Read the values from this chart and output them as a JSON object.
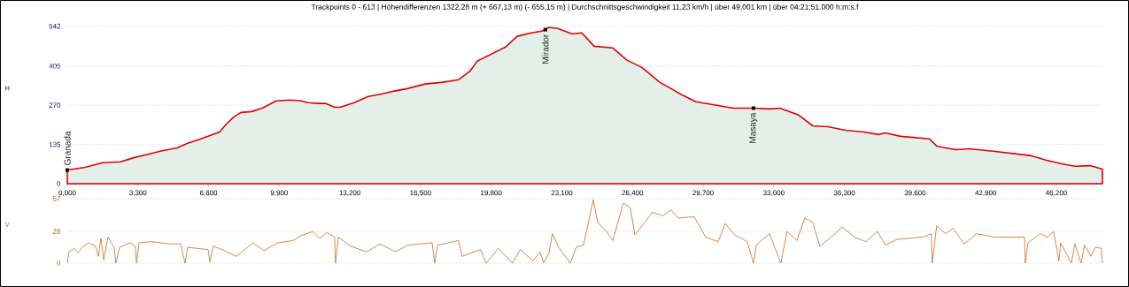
{
  "chart_data": [
    {
      "type": "area",
      "title": "Trackpoints 0 - 613  |  Höhendifferenzen  1322,28 m   (+ 667,13 m)  (- 655,15 m)  |  Durchschnittsgeschwindigkeit  11,23 km/h  |  über  49,001 km  |  über  04:21:51.000 h:m:s.f",
      "ylabel": "H",
      "color": "#e00000",
      "x": [
        0,
        0.83,
        1.65,
        2.48,
        3.14,
        3.8,
        4.47,
        5.13,
        5.62,
        6.12,
        6.78,
        7.11,
        7.44,
        7.78,
        8.11,
        8.6,
        9.1,
        9.76,
        10.42,
        10.92,
        11.25,
        11.75,
        12.08,
        12.49,
        12.74,
        13.4,
        14.06,
        14.72,
        15.22,
        15.88,
        16.71,
        17.54,
        18.28,
        18.82,
        19.15,
        19.81,
        20.47,
        21.01,
        21.67,
        22.17,
        22.5,
        22.91,
        23.57,
        24.03,
        24.61,
        25.48,
        26.14,
        26.84,
        27.67,
        28.7,
        29.36,
        30.4,
        31.1,
        32.09,
        32.8,
        33.29,
        34.16,
        34.82,
        35.53,
        36.35,
        37.22,
        37.88,
        38.21,
        38.92,
        40.28,
        40.61,
        41.48,
        42.14,
        43.34,
        44.71,
        45.04,
        45.7,
        46.4,
        47.06,
        47.77,
        48.35
      ],
      "values": [
        47,
        56,
        72,
        75,
        90,
        102,
        114,
        123,
        139,
        151,
        169,
        178,
        206,
        230,
        245,
        248,
        260,
        285,
        288,
        285,
        279,
        276,
        276,
        263,
        263,
        279,
        300,
        309,
        318,
        327,
        343,
        349,
        358,
        388,
        422,
        446,
        470,
        507,
        519,
        525,
        538,
        534,
        516,
        519,
        473,
        467,
        425,
        400,
        349,
        306,
        282,
        269,
        260,
        260,
        257,
        260,
        236,
        199,
        196,
        184,
        178,
        169,
        175,
        163,
        154,
        129,
        117,
        120,
        111,
        99,
        96,
        81,
        69,
        60,
        62,
        50
      ],
      "xlim": [
        0,
        48.35
      ],
      "ylim": [
        0,
        550
      ],
      "yticks": [
        0,
        135,
        270,
        405,
        542
      ],
      "xticks": [
        {
          "value": 0,
          "label": "0,000"
        },
        {
          "value": 3.3,
          "label": "3,300"
        },
        {
          "value": 6.6,
          "label": "6,600"
        },
        {
          "value": 9.9,
          "label": "9,900"
        },
        {
          "value": 13.2,
          "label": "13,200"
        },
        {
          "value": 16.5,
          "label": "16,500"
        },
        {
          "value": 19.8,
          "label": "19,800"
        },
        {
          "value": 23.1,
          "label": "23,100"
        },
        {
          "value": 26.4,
          "label": "26,400"
        },
        {
          "value": 29.7,
          "label": "29,700"
        },
        {
          "value": 33,
          "label": "33,000"
        },
        {
          "value": 36.3,
          "label": "36,300"
        },
        {
          "value": 39.6,
          "label": "39,600"
        },
        {
          "value": 42.9,
          "label": "42,900"
        },
        {
          "value": 46.2,
          "label": "46,200"
        }
      ],
      "grid": "y",
      "annotations": [
        {
          "text": "Granada",
          "x": 0,
          "y": 47
        },
        {
          "text": "Mirador",
          "x": 22.33,
          "y": 530
        },
        {
          "text": "Masaya",
          "x": 32.05,
          "y": 260
        }
      ]
    },
    {
      "type": "line",
      "ylabel": "V",
      "color": "#cc6a1e",
      "tick_labels": "y",
      "grid": "y",
      "x": [
        0,
        0.08,
        0.33,
        0.5,
        0.74,
        0.99,
        1.32,
        1.45,
        1.57,
        1.7,
        1.9,
        2.19,
        2.27,
        2.44,
        2.94,
        3.18,
        3.23,
        3.35,
        3.93,
        4.8,
        5.29,
        5.5,
        5.62,
        6.58,
        6.66,
        6.82,
        7.24,
        7.9,
        8.68,
        9.18,
        9.84,
        10.55,
        10.88,
        11.46,
        11.79,
        12.12,
        12.49,
        12.53,
        12.66,
        13.23,
        13.98,
        14.6,
        15.34,
        15.92,
        17.04,
        17.16,
        17.29,
        18.28,
        18.44,
        19.31,
        19.56,
        20.14,
        20.8,
        21.17,
        21.75,
        22.08,
        22.25,
        22.5,
        22.66,
        22.95,
        23.49,
        23.78,
        24.11,
        24.57,
        24.77,
        25.15,
        25.48,
        25.97,
        26.3,
        26.51,
        27.34,
        27.83,
        28.2,
        28.54,
        29.28,
        29.82,
        30.4,
        30.73,
        31.18,
        31.76,
        32.05,
        32.18,
        32.8,
        33.33,
        33.62,
        34.08,
        34.45,
        34.82,
        35.15,
        35.86,
        36.19,
        36.77,
        37.3,
        37.84,
        38.21,
        38.75,
        39.95,
        40.36,
        40.4,
        40.61,
        41.03,
        41.36,
        41.89,
        42.47,
        43.34,
        44.71,
        44.75,
        44.87,
        45.45,
        45.78,
        46.07,
        46.32,
        46.4,
        46.9,
        47.06,
        47.35,
        47.52,
        47.81,
        48.02,
        48.3,
        48.35
      ],
      "values": [
        0,
        10,
        13,
        9,
        15,
        18,
        15,
        6,
        22,
        3,
        23,
        14,
        0,
        14,
        18,
        15,
        0,
        18,
        19,
        17,
        17,
        0,
        14,
        12,
        1,
        15,
        12,
        6,
        18,
        11,
        18,
        20,
        24,
        28,
        22,
        27,
        23,
        0,
        23,
        15,
        10,
        17,
        10,
        16,
        18,
        0,
        16,
        20,
        6,
        12,
        0,
        13,
        0,
        12,
        2,
        10,
        0,
        9,
        26,
        14,
        0,
        14,
        16,
        56,
        36,
        29,
        20,
        53,
        49,
        25,
        45,
        42,
        47,
        40,
        41,
        23,
        19,
        35,
        25,
        19,
        0,
        16,
        26,
        0,
        28,
        20,
        40,
        36,
        15,
        26,
        32,
        23,
        19,
        28,
        16,
        21,
        23,
        26,
        0,
        33,
        26,
        31,
        17,
        26,
        23,
        23,
        0,
        18,
        26,
        23,
        28,
        2,
        18,
        0,
        17,
        0,
        16,
        6,
        14,
        13,
        0
      ],
      "xlim": [
        0,
        48.35
      ],
      "ylim": [
        0,
        57
      ],
      "yticks": [
        0,
        28,
        57
      ]
    }
  ]
}
